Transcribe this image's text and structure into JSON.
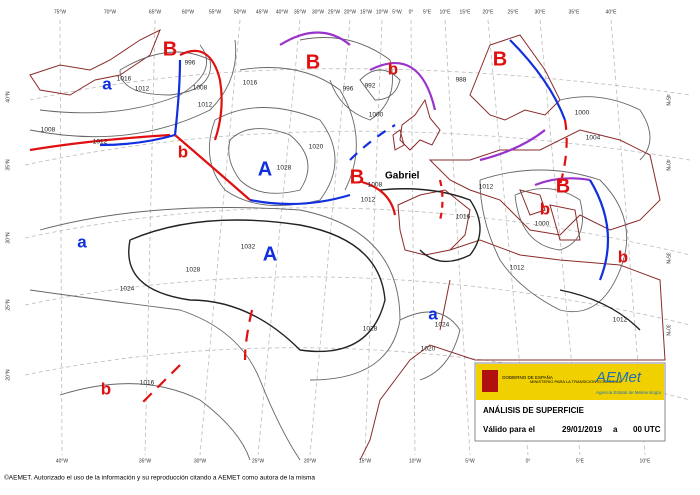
{
  "map": {
    "longitudes_top": [
      "75°W",
      "70°W",
      "65°W",
      "60°W",
      "55°W",
      "50°W",
      "45°W",
      "40°W",
      "35°W",
      "30°W",
      "25°W",
      "20°W",
      "15°W",
      "10°W",
      "5°W",
      "0°",
      "5°E",
      "10°E",
      "15°E",
      "20°E",
      "25°E",
      "30°E",
      "35°E",
      "40°E"
    ],
    "longitudes_bottom": [
      "40°W",
      "35°W",
      "30°W",
      "25°W",
      "20°W",
      "15°W",
      "10°W",
      "5°W",
      "0°",
      "5°E",
      "10°E"
    ],
    "latitudes_left": [
      "40°N",
      "35°N",
      "30°N",
      "25°N",
      "20°N"
    ],
    "latitudes_right": [
      "45°N",
      "40°N",
      "35°N",
      "30°N"
    ],
    "pressure_centers": [
      "B",
      "B",
      "b",
      "B",
      "a",
      "A",
      "b",
      "B",
      "a",
      "A",
      "b",
      "a",
      "B",
      "b",
      "b"
    ],
    "isobar_labels": [
      1016,
      1012,
      1008,
      996,
      1012,
      1016,
      1008,
      1012,
      1028,
      1020,
      1000,
      992,
      996,
      1008,
      1012,
      1016,
      1012,
      1032,
      1028,
      1024,
      1028,
      1024,
      1020,
      1016,
      1012,
      1000,
      1004,
      1000,
      1012,
      988
    ],
    "storm_name": "Gabriel"
  },
  "info_box": {
    "government": "GOBIERNO DE ESPAÑA",
    "ministry": "MINISTERIO PARA LA TRANSICIÓN ECOLÓGICA",
    "agency": "AEMet",
    "agency_full": "Agencia Estatal de Meteorología",
    "title": "ANÁLISIS DE SUPERFICIE",
    "valid_label": "Válido para el",
    "date": "29/01/2019",
    "at": "a",
    "time": "00 UTC"
  },
  "footer": "©AEMET. Autorizado el uso de la información y su reproducción citando a AEMET como autora de la misma"
}
